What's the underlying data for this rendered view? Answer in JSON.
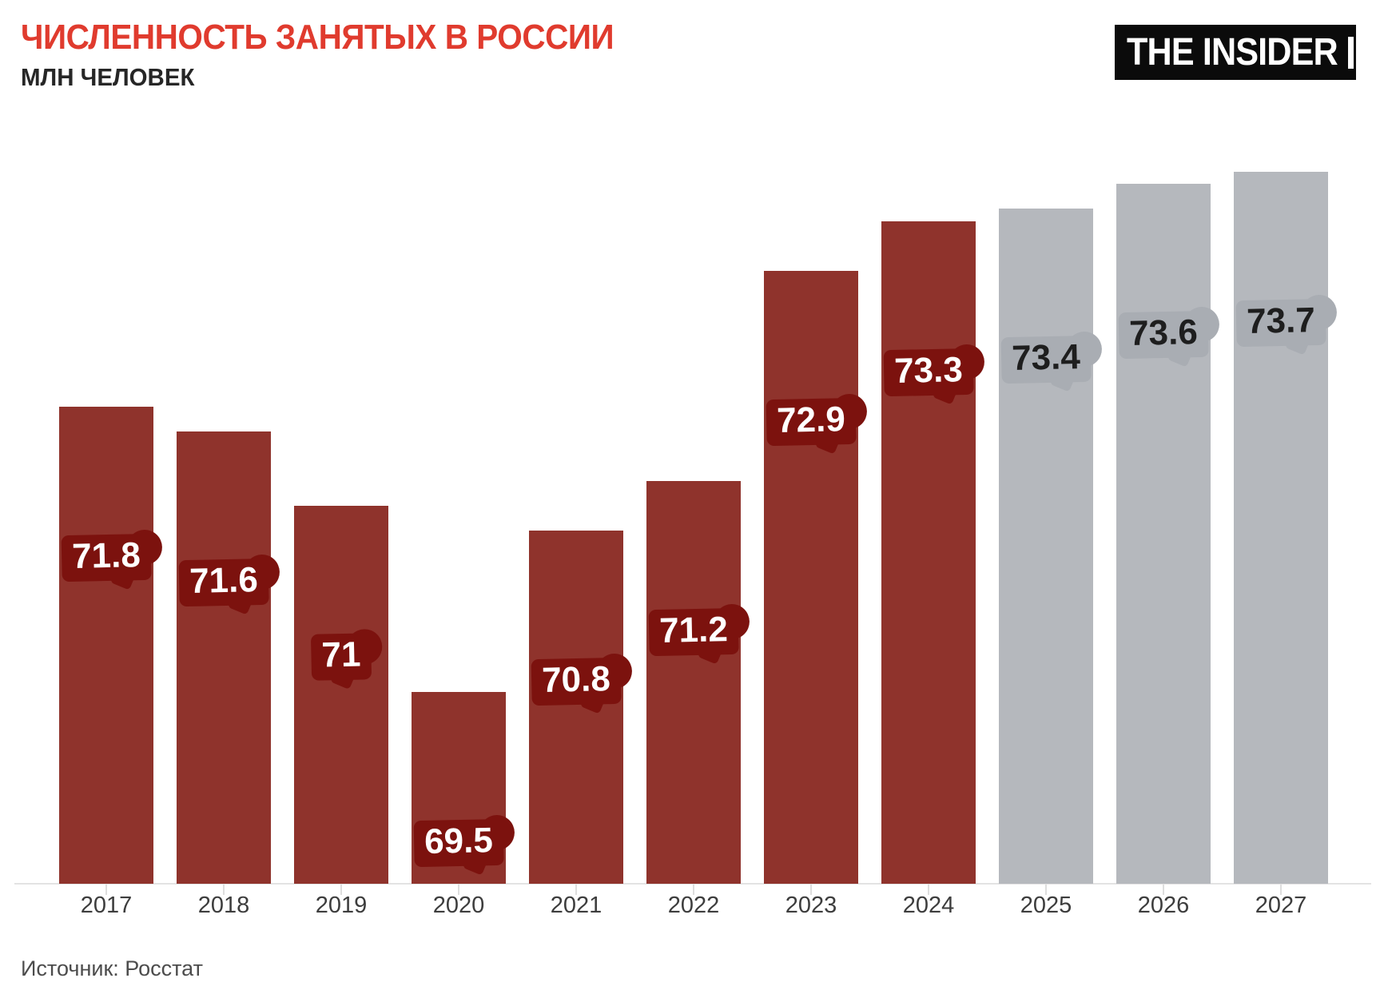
{
  "header": {
    "title": "ЧИСЛЕННОСТЬ ЗАНЯТЫХ В РОССИИ",
    "subtitle": "МЛН ЧЕЛОВЕК",
    "logo_text": "THE INSIDER"
  },
  "footer": {
    "source": "Источник: Росстат"
  },
  "colors": {
    "title_red": "#e03b2e",
    "logo_bg": "#0b0b0b",
    "logo_text": "#ffffff"
  },
  "chart_data": {
    "type": "bar",
    "title": "ЧИСЛЕННОСТЬ ЗАНЯТЫХ В РОССИИ",
    "ylabel": "МЛН ЧЕЛОВЕК",
    "xlabel": "",
    "categories": [
      "2017",
      "2018",
      "2019",
      "2020",
      "2021",
      "2022",
      "2023",
      "2024",
      "2025",
      "2026",
      "2027"
    ],
    "values": [
      71.8,
      71.6,
      71,
      69.5,
      70.8,
      71.2,
      72.9,
      73.3,
      73.4,
      73.6,
      73.7
    ],
    "value_labels": [
      "71.8",
      "71.6",
      "71",
      "69.5",
      "70.8",
      "71.2",
      "72.9",
      "73.3",
      "73.4",
      "73.6",
      "73.7"
    ],
    "forecast_years": [
      "2025",
      "2026",
      "2027"
    ],
    "ylim": [
      68,
      74
    ],
    "grid": "off",
    "legend": "none",
    "colors": {
      "actual": "#8f332c",
      "forecast": "#b5b8bd",
      "label_bg_actual": "#7c120e",
      "label_bg_forecast": "#a9adb3",
      "label_text_actual": "#ffffff",
      "label_text_forecast": "#1e1e1e"
    }
  }
}
